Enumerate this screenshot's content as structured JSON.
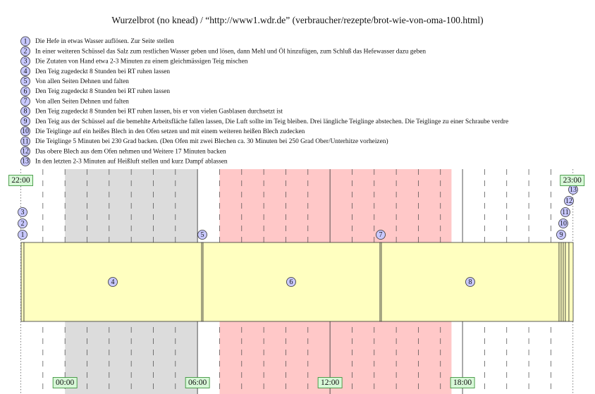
{
  "title": "Wurzelbrot (no knead) / “http://www1.wdr.de” (verbraucher/rezepte/brot-wie-von-oma-100.html)",
  "steps": [
    {
      "number": "1",
      "text": "Die Hefe in etwas Wasser auflösen. Zur Seite stellen"
    },
    {
      "number": "2",
      "text": "In einer weiteren Schüssel das Salz zum restlichen Wasser geben und lösen, dann Mehl und Öl hinzufügen, zum Schluß das Hefewasser dazu geben"
    },
    {
      "number": "3",
      "text": "Die Zutaten von Hand etwa 2-3 Minuten zu einem gleichmässigen Teig mischen"
    },
    {
      "number": "4",
      "text": "Den Teig zugedeckt 8 Stunden bei RT ruhen lassen"
    },
    {
      "number": "5",
      "text": "Von allen Seiten Dehnen und falten"
    },
    {
      "number": "6",
      "text": "Den Teig zugedeckt 8 Stunden bei RT ruhen lassen"
    },
    {
      "number": "7",
      "text": "Von allen Seiten Dehnen und falten"
    },
    {
      "number": "8",
      "text": "Den Teig zugedeckt 8 Stunden bei RT ruhen lassen, bis er von vielen Gasblasen durchsetzt ist"
    },
    {
      "number": "9",
      "text": "Den Teig aus der Schüssel auf die bemehlte Arbeitsfläche fallen lassen, Die Luft sollte im Teig bleiben. Drei längliche Teiglinge abstechen. Die Teiglinge zu einer Schraube verdre"
    },
    {
      "number": "10",
      "text": "Die Teiglinge auf ein heißes Blech in den Ofen setzen und mit einem weiteren heißen Blech zudecken"
    },
    {
      "number": "11",
      "text": "Die Teiglinge 5 Minuten bei 230 Grad backen. (Den Ofen mit zwei Blechen ca. 30 Minuten bei 250 Grad Ober/Unterhitze vorheizen)"
    },
    {
      "number": "12",
      "text": "Das obere Blech aus dem Ofen nehmen und Weitere 17 Minuten backen"
    },
    {
      "number": "13",
      "text": "In den letzten 2-3 Minuten auf Heißluft stellen und kurz Dampf ablassen"
    }
  ],
  "timeline": {
    "top_labels": [
      "22:00",
      "23:00"
    ],
    "bottom_labels": [
      "00:00",
      "06:00",
      "12:00",
      "18:00"
    ]
  }
}
